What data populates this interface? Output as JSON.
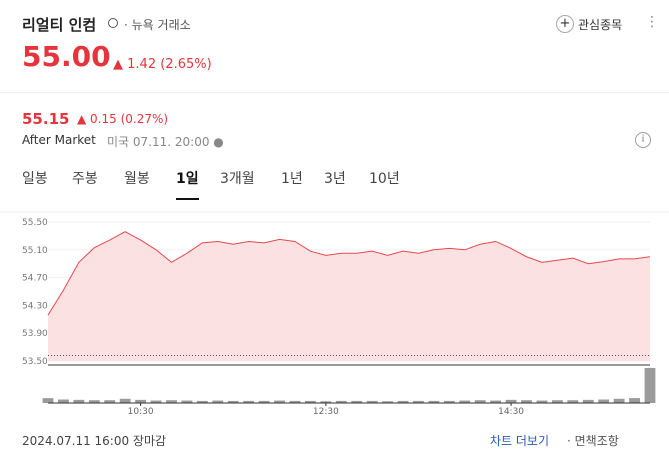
{
  "header": {
    "name": "리얼티 인컴",
    "market": "뉴욕 거래소",
    "watch_button": "관심종목",
    "price": "55.00",
    "change": "1.42",
    "change_pct": "(2.65%)"
  },
  "after_market": {
    "price": "55.15",
    "change": "0.15",
    "change_pct": "(0.27%)",
    "label": "After Market",
    "time": "미국 07.11. 20:00"
  },
  "tabs": [
    "일봉",
    "주봉",
    "월봉",
    "1일",
    "3개월",
    "1년",
    "3년",
    "10년"
  ],
  "active_tab": 3,
  "chart_data": {
    "type": "line",
    "color": "#e5484d",
    "fill": "#fbe1e2",
    "categories": [
      null,
      null,
      null,
      null,
      null,
      null,
      "10:30",
      null,
      null,
      null,
      null,
      null,
      null,
      null,
      null,
      null,
      null,
      null,
      "12:30",
      null,
      null,
      null,
      null,
      null,
      null,
      null,
      null,
      null,
      null,
      null,
      "14:30",
      null,
      null,
      null,
      null,
      null,
      null,
      null,
      null,
      null
    ],
    "values": [
      54.16,
      54.52,
      54.92,
      55.13,
      55.24,
      55.36,
      55.24,
      55.1,
      54.92,
      55.05,
      55.2,
      55.22,
      55.18,
      55.22,
      55.2,
      55.25,
      55.22,
      55.08,
      55.02,
      55.05,
      55.05,
      55.08,
      55.02,
      55.08,
      55.05,
      55.1,
      55.12,
      55.1,
      55.18,
      55.22,
      55.12,
      55.0,
      54.92,
      54.95,
      54.98,
      54.9,
      54.93,
      54.97,
      54.97,
      55.0
    ],
    "previous_close": 53.58,
    "volume": [
      14,
      10,
      9,
      8,
      8,
      12,
      9,
      7,
      8,
      7,
      6,
      7,
      6,
      6,
      6,
      7,
      6,
      6,
      5,
      6,
      6,
      6,
      5,
      6,
      6,
      6,
      6,
      7,
      8,
      7,
      9,
      8,
      7,
      8,
      8,
      9,
      10,
      12,
      14,
      100
    ],
    "volume_color": "#9a9a9a",
    "ylim": [
      53.5,
      55.5
    ],
    "yticks": [
      {
        "value": 53.5,
        "label": "53.50"
      },
      {
        "value": 53.9,
        "label": "53.90"
      },
      {
        "value": 54.3,
        "label": "54.30"
      },
      {
        "value": 54.7,
        "label": "54.70"
      },
      {
        "value": 55.1,
        "label": "55.10"
      },
      {
        "value": 55.5,
        "label": "55.50"
      }
    ],
    "grid": true
  },
  "footer": {
    "status": "2024.07.11 16:00 장마감",
    "more": "차트 더보기",
    "disclaimer": "면책조항"
  }
}
